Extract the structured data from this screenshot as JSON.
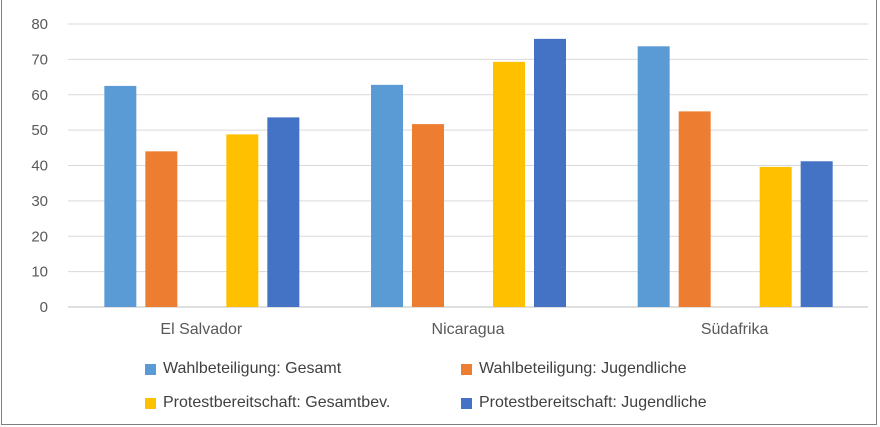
{
  "colors": {
    "wahl_gesamt": "#5b9bd5",
    "wahl_jugend": "#ed7d31",
    "protest_gesamt": "#ffc000",
    "protest_jugend": "#4472c4",
    "grid": "#d9d9d9",
    "axis": "#bfbfbf",
    "text": "#595959"
  },
  "chart_data": {
    "type": "bar",
    "categories": [
      "El Salvador",
      "Nicaragua",
      "Südafrika"
    ],
    "series": [
      {
        "name": "Wahlbeteiligung: Gesamt",
        "values": [
          62.5,
          62.8,
          73.7
        ],
        "color_key": "wahl_gesamt"
      },
      {
        "name": "Wahlbeteiligung: Jugendliche",
        "values": [
          44.0,
          51.7,
          55.3
        ],
        "color_key": "wahl_jugend"
      },
      {
        "name": "Protestbereitschaft: Gesamtbev.",
        "values": [
          48.8,
          69.3,
          39.6
        ],
        "color_key": "protest_gesamt"
      },
      {
        "name": "Protestbereitschaft: Jugendliche",
        "values": [
          53.6,
          75.8,
          41.2
        ],
        "color_key": "protest_jugend"
      }
    ],
    "ylim": [
      0,
      80
    ],
    "yticks": [
      0,
      10,
      20,
      30,
      40,
      50,
      60,
      70,
      80
    ],
    "grid": true,
    "legend_position": "bottom"
  }
}
